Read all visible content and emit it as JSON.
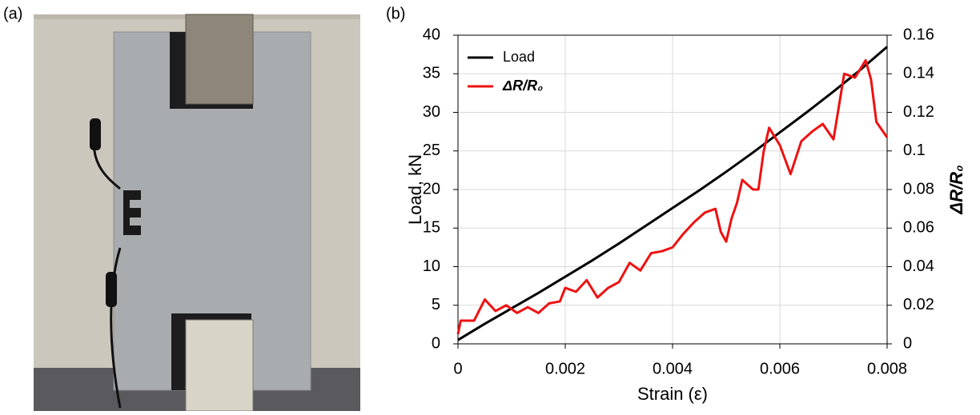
{
  "panel_a": {
    "label": "(a)"
  },
  "chart_data": {
    "type": "line",
    "panel_label": "(b)",
    "xlabel": "Strain (ε)",
    "ylabel": "Load, kN",
    "y2label": "ΔR/R₀",
    "xlim": [
      0,
      0.008
    ],
    "xticks": [
      0,
      0.002,
      0.004,
      0.006,
      0.008
    ],
    "ylim": [
      0,
      40
    ],
    "yticks": [
      0,
      5,
      10,
      15,
      20,
      25,
      30,
      35,
      40
    ],
    "y2lim": [
      0,
      0.16
    ],
    "y2ticks": [
      0,
      0.02,
      0.04,
      0.06,
      0.08,
      0.1,
      0.12,
      0.14,
      0.16
    ],
    "grid": true,
    "legend": "upper left",
    "series": [
      {
        "name": "Load",
        "color": "#000000",
        "axis": "y",
        "x": [
          0,
          0.0005,
          0.001,
          0.0015,
          0.002,
          0.0025,
          0.003,
          0.0035,
          0.004,
          0.0045,
          0.005,
          0.0055,
          0.006,
          0.0065,
          0.007,
          0.0075,
          0.008
        ],
        "values": [
          0.5,
          2.6,
          4.6,
          6.6,
          8.7,
          10.8,
          13.0,
          15.3,
          17.6,
          19.9,
          22.3,
          24.8,
          27.4,
          30.0,
          32.7,
          35.5,
          38.5
        ]
      },
      {
        "name": "ΔR/R₀",
        "color": "#ee1111",
        "axis": "y2",
        "x": [
          0,
          5e-05,
          0.0003,
          0.0005,
          0.0007,
          0.0009,
          0.0011,
          0.0013,
          0.0015,
          0.0017,
          0.0019,
          0.002,
          0.0022,
          0.0024,
          0.0026,
          0.0028,
          0.003,
          0.0032,
          0.0034,
          0.0036,
          0.0038,
          0.004,
          0.0042,
          0.0044,
          0.0046,
          0.0048,
          0.0049,
          0.005,
          0.0051,
          0.0052,
          0.0053,
          0.0055,
          0.0056,
          0.0057,
          0.0058,
          0.006,
          0.0062,
          0.0064,
          0.0066,
          0.0068,
          0.007,
          0.0072,
          0.0074,
          0.0076,
          0.0077,
          0.0078,
          0.008
        ],
        "values": [
          0.005,
          0.012,
          0.012,
          0.023,
          0.017,
          0.02,
          0.016,
          0.019,
          0.016,
          0.021,
          0.022,
          0.029,
          0.027,
          0.033,
          0.024,
          0.029,
          0.032,
          0.042,
          0.038,
          0.047,
          0.048,
          0.05,
          0.057,
          0.063,
          0.068,
          0.07,
          0.058,
          0.053,
          0.065,
          0.073,
          0.085,
          0.08,
          0.08,
          0.1,
          0.112,
          0.103,
          0.088,
          0.105,
          0.11,
          0.114,
          0.106,
          0.14,
          0.138,
          0.147,
          0.137,
          0.115,
          0.107
        ]
      }
    ]
  }
}
